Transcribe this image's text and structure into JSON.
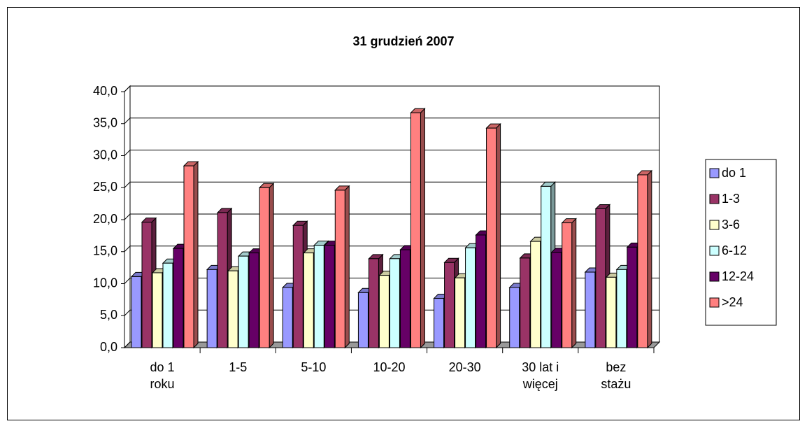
{
  "chart_data": {
    "type": "bar3d",
    "title": "31 grudzień 2007",
    "categories": [
      "do 1 roku",
      "1-5",
      "5-10",
      "10-20",
      "20-30",
      "30 lat i więcej",
      "bez stażu"
    ],
    "series": [
      {
        "name": "do 1",
        "color": "#9999ff",
        "values": [
          11.1,
          12.2,
          9.4,
          8.6,
          7.7,
          9.4,
          11.8
        ]
      },
      {
        "name": "1-3",
        "color": "#993366",
        "values": [
          19.6,
          21.1,
          19.1,
          13.9,
          13.3,
          14.0,
          21.7
        ]
      },
      {
        "name": "3-6",
        "color": "#ffffcc",
        "values": [
          11.7,
          12.0,
          14.8,
          11.3,
          10.9,
          16.6,
          11.0
        ]
      },
      {
        "name": "6-12",
        "color": "#ccffff",
        "values": [
          13.2,
          14.3,
          16.0,
          13.9,
          15.6,
          25.2,
          12.2
        ]
      },
      {
        "name": "12-24",
        "color": "#660066",
        "values": [
          15.5,
          14.8,
          16.0,
          15.3,
          17.6,
          14.9,
          15.7
        ]
      },
      {
        "name": ">24",
        "color": "#ff8080",
        "values": [
          28.4,
          25.0,
          24.6,
          36.7,
          34.3,
          19.5,
          27.0
        ]
      }
    ],
    "ylim": [
      0,
      40
    ],
    "yticks": [
      {
        "value": 0,
        "label": "0,0"
      },
      {
        "value": 5,
        "label": "5,0"
      },
      {
        "value": 10,
        "label": "10,0"
      },
      {
        "value": 15,
        "label": "15,0"
      },
      {
        "value": 20,
        "label": "20,0"
      },
      {
        "value": 25,
        "label": "25,0"
      },
      {
        "value": 30,
        "label": "30,0"
      },
      {
        "value": 35,
        "label": "35,0"
      },
      {
        "value": 40,
        "label": "40,0"
      }
    ],
    "grid": true,
    "legend": "right"
  }
}
